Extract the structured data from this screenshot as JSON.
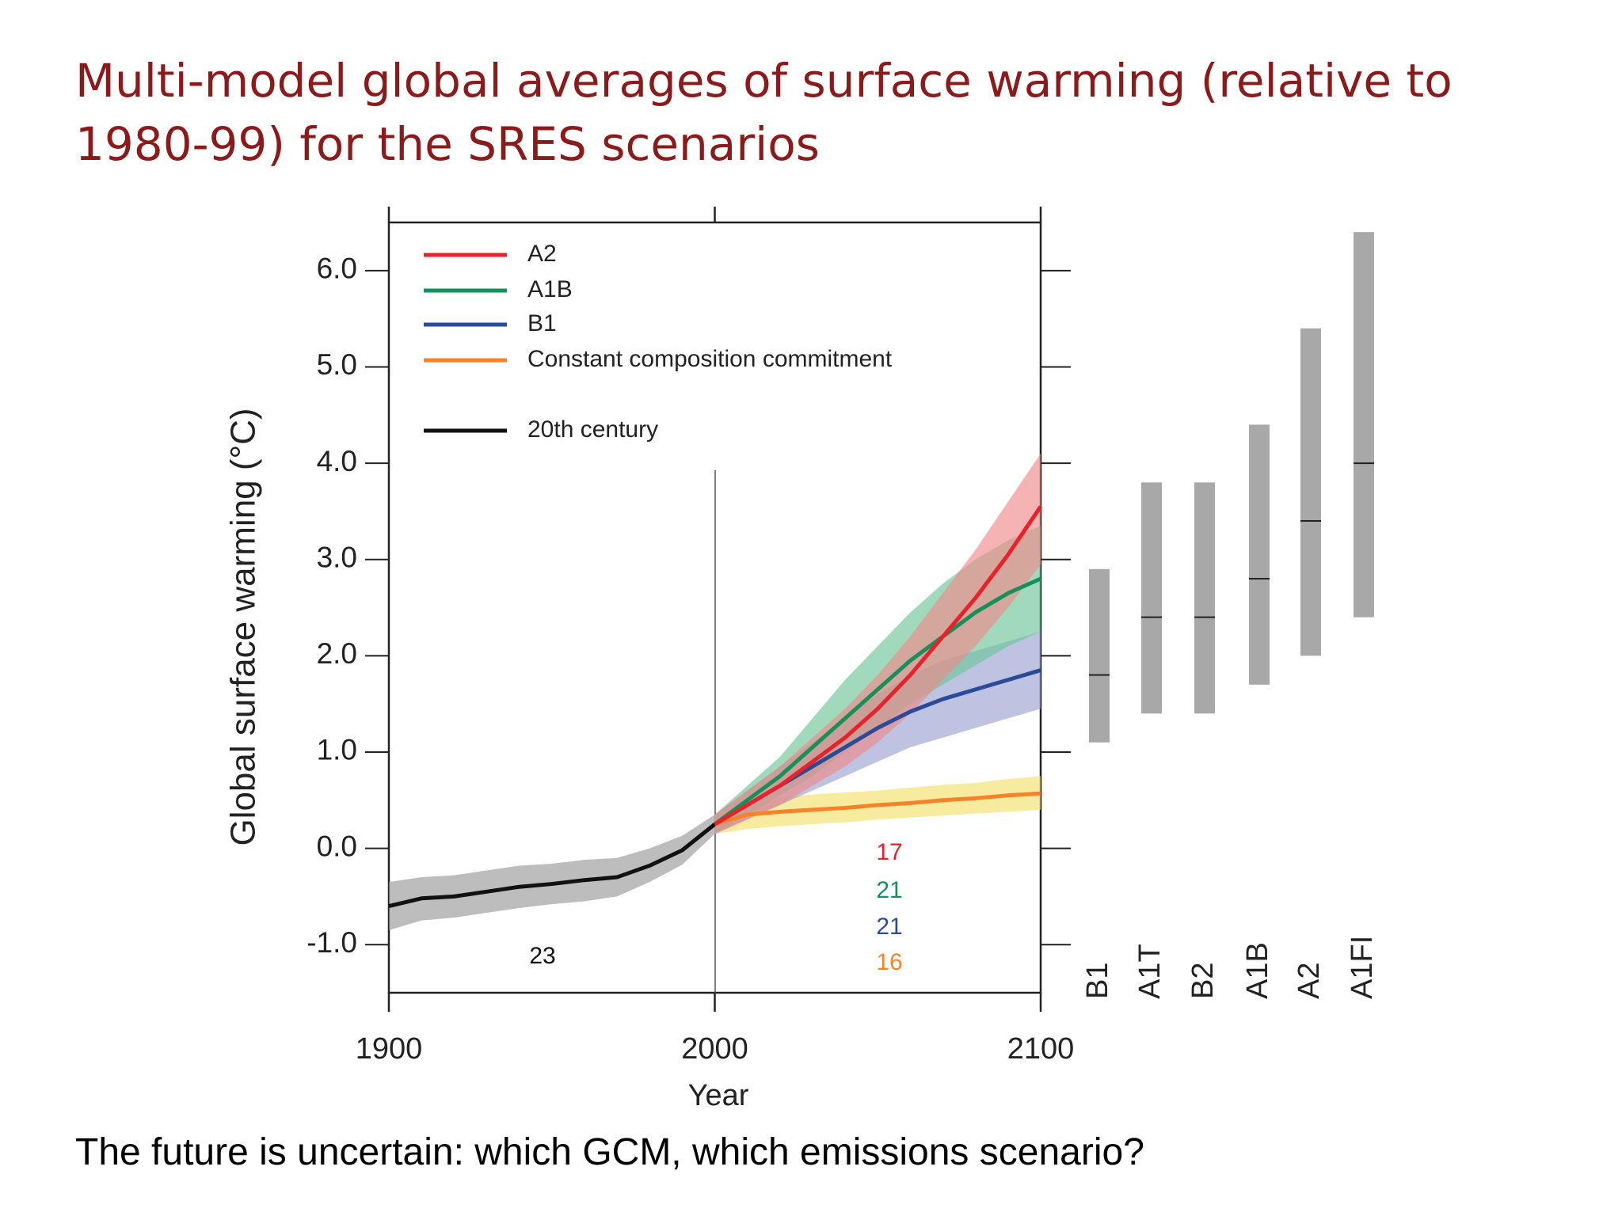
{
  "title": "Multi-model global averages of surface warming (relative to 1980-99) for the SRES scenarios",
  "footer": "The future is uncertain: which GCM, which emissions scenario?",
  "chart_data": [
    {
      "type": "line",
      "xlabel": "Year",
      "ylabel": "Global surface warming (°C)",
      "xlim": [
        1900,
        2100
      ],
      "xticks": [
        1900,
        2000,
        2100
      ],
      "ylim": [
        -1.5,
        6.5
      ],
      "yticks": [
        {
          "value": -1,
          "label": "-1.0"
        },
        {
          "value": 0,
          "label": "0.0"
        },
        {
          "value": 1,
          "label": "1.0"
        },
        {
          "value": 2,
          "label": "2.0"
        },
        {
          "value": 3,
          "label": "3.0"
        },
        {
          "value": 4,
          "label": "4.0"
        },
        {
          "value": 5,
          "label": "5.0"
        },
        {
          "value": 6,
          "label": "6.0"
        }
      ],
      "series": [
        {
          "name": "A2",
          "color": "#e8212a",
          "band_color": "#f08a8a",
          "model_count": 17,
          "x": [
            2000,
            2010,
            2020,
            2030,
            2040,
            2050,
            2060,
            2070,
            2080,
            2090,
            2100
          ],
          "values": [
            0.25,
            0.45,
            0.65,
            0.9,
            1.15,
            1.45,
            1.8,
            2.2,
            2.6,
            3.05,
            3.55
          ],
          "lower": [
            0.15,
            0.3,
            0.45,
            0.65,
            0.85,
            1.1,
            1.4,
            1.75,
            2.1,
            2.5,
            2.95
          ],
          "upper": [
            0.35,
            0.6,
            0.85,
            1.15,
            1.45,
            1.8,
            2.2,
            2.65,
            3.1,
            3.6,
            4.1
          ]
        },
        {
          "name": "A1B",
          "color": "#15905a",
          "band_color": "#6fc49a",
          "model_count": 21,
          "x": [
            2000,
            2010,
            2020,
            2030,
            2040,
            2050,
            2060,
            2070,
            2080,
            2090,
            2100
          ],
          "values": [
            0.25,
            0.5,
            0.75,
            1.05,
            1.35,
            1.65,
            1.95,
            2.2,
            2.45,
            2.65,
            2.8
          ],
          "lower": [
            0.15,
            0.35,
            0.55,
            0.75,
            1.0,
            1.25,
            1.5,
            1.7,
            1.9,
            2.1,
            2.25
          ],
          "upper": [
            0.35,
            0.65,
            0.95,
            1.35,
            1.75,
            2.1,
            2.45,
            2.75,
            3.0,
            3.2,
            3.35
          ]
        },
        {
          "name": "B1",
          "color": "#2b4a9a",
          "band_color": "#9aa3d0",
          "model_count": 21,
          "x": [
            2000,
            2010,
            2020,
            2030,
            2040,
            2050,
            2060,
            2070,
            2080,
            2090,
            2100
          ],
          "values": [
            0.25,
            0.45,
            0.65,
            0.85,
            1.05,
            1.25,
            1.42,
            1.55,
            1.65,
            1.75,
            1.85
          ],
          "lower": [
            0.15,
            0.3,
            0.45,
            0.6,
            0.75,
            0.9,
            1.05,
            1.15,
            1.25,
            1.35,
            1.45
          ],
          "upper": [
            0.35,
            0.6,
            0.85,
            1.1,
            1.35,
            1.6,
            1.8,
            1.95,
            2.05,
            2.15,
            2.25
          ]
        },
        {
          "name": "Constant composition commitment",
          "color": "#f5832a",
          "band_color": "#f1e06a",
          "model_count": 16,
          "x": [
            2000,
            2010,
            2020,
            2030,
            2040,
            2050,
            2060,
            2070,
            2080,
            2090,
            2100
          ],
          "values": [
            0.25,
            0.35,
            0.38,
            0.4,
            0.42,
            0.45,
            0.47,
            0.5,
            0.52,
            0.55,
            0.57
          ],
          "lower": [
            0.15,
            0.2,
            0.23,
            0.25,
            0.27,
            0.3,
            0.32,
            0.34,
            0.36,
            0.38,
            0.4
          ],
          "upper": [
            0.35,
            0.5,
            0.53,
            0.56,
            0.58,
            0.6,
            0.63,
            0.66,
            0.68,
            0.72,
            0.75
          ]
        },
        {
          "name": "20th century",
          "color": "#111111",
          "band_color": "#9a9a9a",
          "model_count": 23,
          "x": [
            1900,
            1910,
            1920,
            1930,
            1940,
            1950,
            1960,
            1970,
            1980,
            1990,
            2000
          ],
          "values": [
            -0.6,
            -0.52,
            -0.5,
            -0.45,
            -0.4,
            -0.37,
            -0.33,
            -0.3,
            -0.18,
            -0.02,
            0.25
          ],
          "lower": [
            -0.85,
            -0.75,
            -0.72,
            -0.67,
            -0.62,
            -0.58,
            -0.55,
            -0.5,
            -0.35,
            -0.17,
            0.15
          ],
          "upper": [
            -0.35,
            -0.3,
            -0.28,
            -0.23,
            -0.18,
            -0.16,
            -0.12,
            -0.1,
            0.0,
            0.13,
            0.35
          ]
        }
      ]
    },
    {
      "type": "range",
      "ylim": [
        -1.5,
        6.5
      ],
      "color": "#a8a8a8",
      "categories": [
        "B1",
        "A1T",
        "B2",
        "A1B",
        "A2",
        "A1FI"
      ],
      "values": [
        1.8,
        2.4,
        2.4,
        2.8,
        3.4,
        4.0
      ],
      "lower": [
        1.1,
        1.4,
        1.4,
        1.7,
        2.0,
        2.4
      ],
      "upper": [
        2.9,
        3.8,
        3.8,
        4.4,
        5.4,
        6.4
      ]
    }
  ]
}
